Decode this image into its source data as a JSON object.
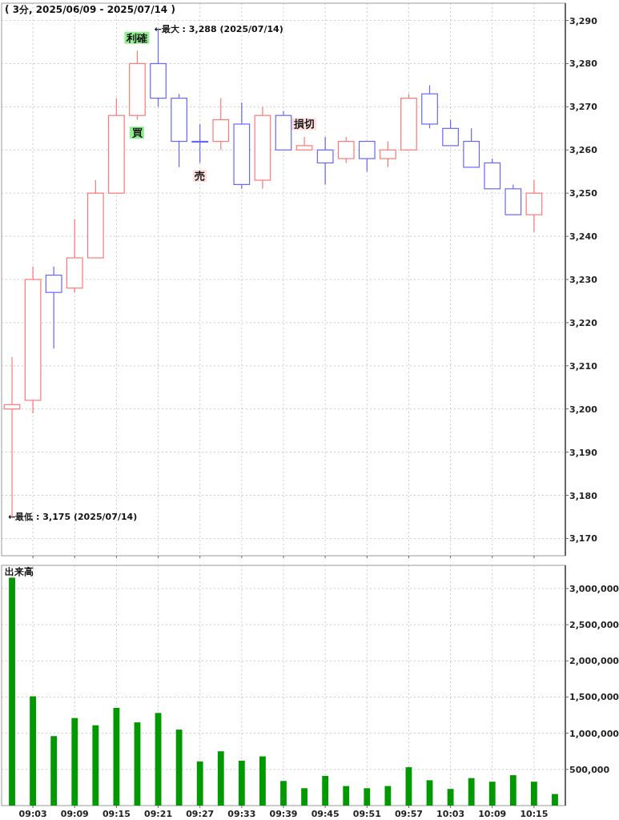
{
  "chart_data": [
    {
      "type": "candlestick",
      "title": "( 3分, 2025/06/09 - 2025/07/14 )",
      "x": [
        9,
        9.05,
        9.1,
        9.15,
        9.2,
        9.25,
        9.3,
        9.35,
        9.4,
        9.45,
        9.5,
        9.55,
        9.6,
        9.65,
        9.7,
        9.75,
        9.8,
        9.85,
        9.9,
        9.95,
        10,
        10.05,
        10.1,
        10.15,
        10.2,
        10.25
      ],
      "ohlc": [
        [
          3200,
          3212,
          3175,
          3201
        ],
        [
          3202,
          3233,
          3199,
          3230
        ],
        [
          3231,
          3233,
          3214,
          3227
        ],
        [
          3228,
          3244,
          3227,
          3235
        ],
        [
          3235,
          3253,
          3235,
          3250
        ],
        [
          3250,
          3272,
          3250,
          3268
        ],
        [
          3268,
          3283,
          3267,
          3280
        ],
        [
          3280,
          3288,
          3270,
          3272
        ],
        [
          3272,
          3273,
          3256,
          3262
        ],
        [
          3262,
          3266,
          3257,
          3262
        ],
        [
          3262,
          3272,
          3260,
          3267
        ],
        [
          3266,
          3271,
          3251,
          3252
        ],
        [
          3253,
          3270,
          3251,
          3268
        ],
        [
          3268,
          3269,
          3260,
          3260
        ],
        [
          3260,
          3263,
          3260,
          3261
        ],
        [
          3260,
          3263,
          3252,
          3257
        ],
        [
          3258,
          3263,
          3257,
          3262
        ],
        [
          3262,
          3262,
          3255,
          3258
        ],
        [
          3258,
          3262,
          3256,
          3260
        ],
        [
          3260,
          3273,
          3260,
          3272
        ],
        [
          3273,
          3275,
          3265,
          3266
        ],
        [
          3265,
          3267,
          3261,
          3261
        ],
        [
          3262,
          3265,
          3256,
          3256
        ],
        [
          3257,
          3258,
          3251,
          3251
        ],
        [
          3251,
          3252,
          3245,
          3245
        ],
        [
          3245,
          3253,
          3241,
          3250
        ]
      ],
      "colors": [
        "#ff7777",
        "#ff7777",
        "#6666ff",
        "#ff7777",
        "#ff7777",
        "#ff7777",
        "#ff7777",
        "#6666ff",
        "#6666ff",
        "#6666ff",
        "#ff7777",
        "#6666ff",
        "#ff7777",
        "#6666ff",
        "#ff7777",
        "#6666ff",
        "#ff7777",
        "#6666ff",
        "#ff7777",
        "#ff7777",
        "#6666ff",
        "#6666ff",
        "#6666ff",
        "#6666ff",
        "#6666ff",
        "#ff7777"
      ],
      "xlim": [
        8.975,
        10.325
      ],
      "xticks": [
        {
          "value": 9.05,
          "label": null
        },
        {
          "value": 9.15,
          "label": null
        },
        {
          "value": 9.25,
          "label": null
        },
        {
          "value": 9.35,
          "label": null
        },
        {
          "value": 9.45,
          "label": null
        },
        {
          "value": 9.55,
          "label": null
        },
        {
          "value": 9.65,
          "label": null
        },
        {
          "value": 9.75,
          "label": null
        },
        {
          "value": 9.85,
          "label": null
        },
        {
          "value": 9.95,
          "label": null
        },
        {
          "value": 10.05,
          "label": null
        },
        {
          "value": 10.15,
          "label": null
        },
        {
          "value": 10.25,
          "label": null
        }
      ],
      "ylim": [
        3166,
        3294
      ],
      "yticks": [
        {
          "value": 3170,
          "label": "3,170"
        },
        {
          "value": 3180,
          "label": "3,180"
        },
        {
          "value": 3190,
          "label": "3,190"
        },
        {
          "value": 3200,
          "label": "3,200"
        },
        {
          "value": 3210,
          "label": "3,210"
        },
        {
          "value": 3220,
          "label": "3,220"
        },
        {
          "value": 3230,
          "label": "3,230"
        },
        {
          "value": 3240,
          "label": "3,240"
        },
        {
          "value": 3250,
          "label": "3,250"
        },
        {
          "value": 3260,
          "label": "3,260"
        },
        {
          "value": 3270,
          "label": "3,270"
        },
        {
          "value": 3280,
          "label": "3,280"
        },
        {
          "value": 3290,
          "label": "3,290"
        }
      ],
      "tick_labels": "y",
      "grid": true,
      "annotations": [
        {
          "text": "←最大 : 3,288 (2025/07/14)",
          "x": 9.35,
          "y": 3288
        },
        {
          "text": "←最低 : 3,175 (2025/07/14)",
          "x": 9,
          "y": 3175
        },
        {
          "text": "利確",
          "x": 9.3,
          "y": 3286
        },
        {
          "text": "買",
          "x": 9.3,
          "y": 3264
        },
        {
          "text": "売",
          "x": 9.45,
          "y": 3254
        },
        {
          "text": "損切",
          "x": 9.7,
          "y": 3266
        }
      ]
    },
    {
      "type": "bar",
      "title": "出来高",
      "x": [
        9,
        9.05,
        9.1,
        9.15,
        9.2,
        9.25,
        9.3,
        9.35,
        9.4,
        9.45,
        9.5,
        9.55,
        9.6,
        9.65,
        9.7,
        9.75,
        9.8,
        9.85,
        9.9,
        9.95,
        10,
        10.05,
        10.1,
        10.15,
        10.2,
        10.25,
        10.3
      ],
      "values": [
        3150000,
        1510000,
        960000,
        1210000,
        1110000,
        1350000,
        1150000,
        1280000,
        1050000,
        610000,
        750000,
        620000,
        680000,
        340000,
        240000,
        410000,
        270000,
        240000,
        270000,
        530000,
        350000,
        230000,
        380000,
        330000,
        420000,
        330000,
        160000
      ],
      "color": "#009900",
      "xlim": [
        8.975,
        10.325
      ],
      "xticks": [
        {
          "value": 9.05,
          "label": "09:03"
        },
        {
          "value": 9.15,
          "label": "09:09"
        },
        {
          "value": 9.25,
          "label": "09:15"
        },
        {
          "value": 9.35,
          "label": "09:21"
        },
        {
          "value": 9.45,
          "label": "09:27"
        },
        {
          "value": 9.55,
          "label": "09:33"
        },
        {
          "value": 9.65,
          "label": "09:39"
        },
        {
          "value": 9.75,
          "label": "09:45"
        },
        {
          "value": 9.85,
          "label": "09:51"
        },
        {
          "value": 9.95,
          "label": "09:57"
        },
        {
          "value": 10.05,
          "label": "10:03"
        },
        {
          "value": 10.15,
          "label": "10:09"
        },
        {
          "value": 10.25,
          "label": "10:15"
        }
      ],
      "ylim": [
        0,
        3320000
      ],
      "yticks": [
        {
          "value": 500000,
          "label": "500,000"
        },
        {
          "value": 1000000,
          "label": "1,000,000"
        },
        {
          "value": 1500000,
          "label": "1,500,000"
        },
        {
          "value": 2000000,
          "label": "2,000,000"
        },
        {
          "value": 2500000,
          "label": "2,500,000"
        },
        {
          "value": 3000000,
          "label": "3,000,000"
        }
      ],
      "grid": true
    }
  ]
}
